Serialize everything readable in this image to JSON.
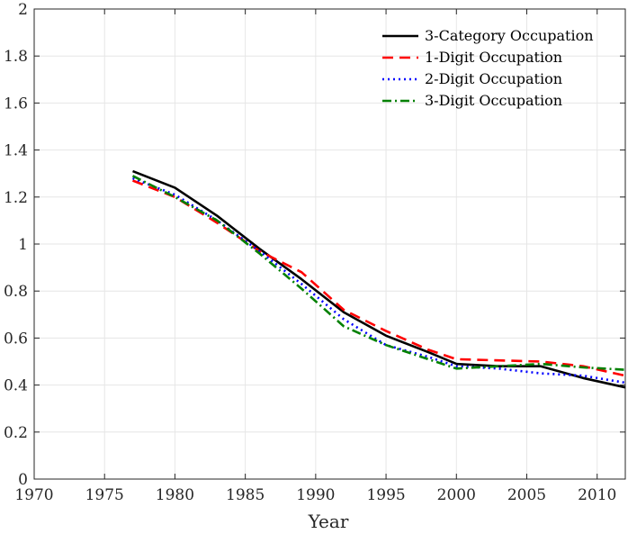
{
  "chart_data": {
    "type": "line",
    "title": "",
    "xlabel": "Year",
    "ylabel": "",
    "xlim": [
      1970,
      2012
    ],
    "ylim": [
      0,
      2
    ],
    "xticks": [
      1970,
      1975,
      1980,
      1985,
      1990,
      1995,
      2000,
      2005,
      2010
    ],
    "yticks": [
      0,
      0.2,
      0.4,
      0.6,
      0.8,
      1,
      1.2,
      1.4,
      1.6,
      1.8,
      2
    ],
    "xtick_labels": [
      "1970",
      "1975",
      "1980",
      "1985",
      "1990",
      "1995",
      "2000",
      "2005",
      "2010"
    ],
    "ytick_labels": [
      "0",
      "0.2",
      "0.4",
      "0.6",
      "0.8",
      "1",
      "1.2",
      "1.4",
      "1.6",
      "1.8",
      "2"
    ],
    "grid": true,
    "legend_position": "top-right",
    "x": [
      1977,
      1980,
      1983,
      1986,
      1989,
      1992,
      1995,
      1998,
      2000,
      2003,
      2006,
      2009,
      2012
    ],
    "series": [
      {
        "name": "3-Category Occupation",
        "color": "#000000",
        "style": "solid",
        "values": [
          1.31,
          1.24,
          1.12,
          0.98,
          0.85,
          0.71,
          0.61,
          0.54,
          0.49,
          0.48,
          0.48,
          0.43,
          0.39
        ]
      },
      {
        "name": "1-Digit Occupation",
        "color": "#ff0000",
        "style": "dashed",
        "values": [
          1.27,
          1.2,
          1.09,
          0.97,
          0.88,
          0.72,
          0.63,
          0.55,
          0.51,
          0.505,
          0.5,
          0.48,
          0.44
        ]
      },
      {
        "name": "2-Digit Occupation",
        "color": "#0000ff",
        "style": "dotted",
        "values": [
          1.28,
          1.21,
          1.1,
          0.97,
          0.83,
          0.68,
          0.57,
          0.52,
          0.48,
          0.47,
          0.45,
          0.44,
          0.41
        ]
      },
      {
        "name": "3-Digit Occupation",
        "color": "#008000",
        "style": "dashdot",
        "values": [
          1.29,
          1.2,
          1.1,
          0.96,
          0.81,
          0.65,
          0.57,
          0.51,
          0.47,
          0.48,
          0.49,
          0.475,
          0.465
        ]
      }
    ]
  }
}
